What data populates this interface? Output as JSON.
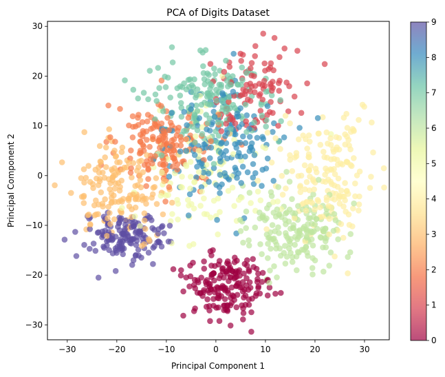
{
  "chart_data": {
    "type": "scatter",
    "title": "PCA of Digits Dataset",
    "xlabel": "Principal Component 1",
    "ylabel": "Principal Component 2",
    "xlim": [
      -34,
      35
    ],
    "ylim": [
      -33,
      31
    ],
    "xticks": [
      -30,
      -20,
      -10,
      0,
      10,
      20,
      30
    ],
    "yticks": [
      -30,
      -20,
      -10,
      0,
      10,
      20,
      30
    ],
    "grid": false,
    "colormap": "Spectral",
    "color_scale": {
      "min": 0,
      "max": 9,
      "ticks": [
        0,
        1,
        2,
        3,
        4,
        5,
        6,
        7,
        8,
        9
      ]
    },
    "marker_alpha": 0.7,
    "clusters": [
      {
        "label": 0,
        "center": [
          2,
          -22
        ],
        "spread": [
          4.5,
          3.5
        ],
        "count": 180
      },
      {
        "label": 1,
        "center": [
          8,
          17
        ],
        "spread": [
          4,
          5
        ],
        "count": 100
      },
      {
        "label": 2,
        "center": [
          -10,
          6
        ],
        "spread": [
          5,
          4.5
        ],
        "count": 170
      },
      {
        "label": 3,
        "center": [
          -20,
          -3
        ],
        "spread": [
          5,
          5
        ],
        "count": 160
      },
      {
        "label": 4,
        "center": [
          22,
          0
        ],
        "spread": [
          5,
          6
        ],
        "count": 180
      },
      {
        "label": 5,
        "center": [
          -3,
          0
        ],
        "spread": [
          7,
          7
        ],
        "count": 110
      },
      {
        "label": 6,
        "center": [
          16,
          -11
        ],
        "spread": [
          5,
          4
        ],
        "count": 180
      },
      {
        "label": 7,
        "center": [
          -1,
          15
        ],
        "spread": [
          6,
          4.5
        ],
        "count": 180
      },
      {
        "label": 8,
        "center": [
          1,
          5
        ],
        "spread": [
          6,
          6
        ],
        "count": 170
      },
      {
        "label": 9,
        "center": [
          -18,
          -12
        ],
        "spread": [
          4,
          2.5
        ],
        "count": 150
      }
    ]
  }
}
